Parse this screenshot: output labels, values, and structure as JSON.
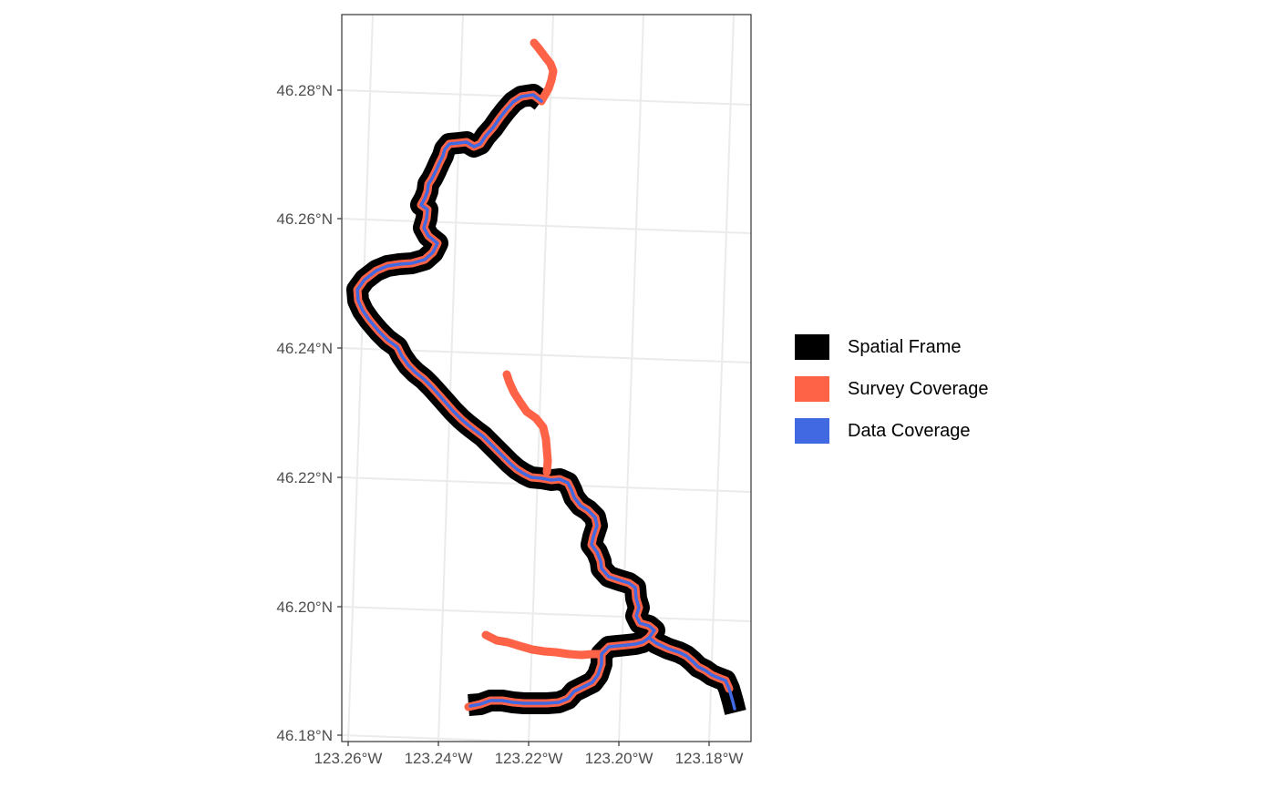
{
  "chart_data": {
    "type": "map",
    "y_ticks": [
      "46.18°N",
      "46.20°N",
      "46.22°N",
      "46.24°N",
      "46.26°N",
      "46.28°N"
    ],
    "x_ticks": [
      "123.26°W",
      "123.24°W",
      "123.22°W",
      "123.20°W",
      "123.18°W"
    ],
    "legend": [
      {
        "label": "Spatial Frame",
        "color": "#000000"
      },
      {
        "label": "Survey Coverage",
        "color": "#FF6347"
      },
      {
        "label": "Data Coverage",
        "color": "#4169E1"
      }
    ],
    "grid": true,
    "legend_position": "right"
  }
}
